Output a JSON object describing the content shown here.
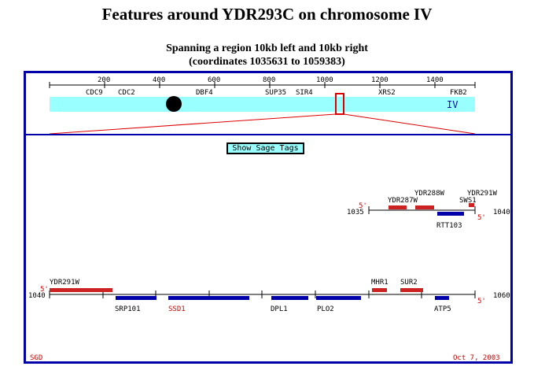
{
  "title": "Features around YDR293C on chromosome IV",
  "subtitle_line1": "Spanning a region 10kb left and 10kb right",
  "subtitle_line2": "(coordinates 1035631 to 1059383)",
  "sage_button_label": "Show Sage Tags",
  "footer": {
    "left": "SGD",
    "right": "Oct 7, 2003"
  },
  "colors": {
    "frame": "#0000aa",
    "chromosome": "#99ffff",
    "watson": "#cc2222",
    "crick": "#0000aa",
    "text_red": "#cc0000"
  },
  "overview": {
    "ticks": [
      "200",
      "400",
      "600",
      "800",
      "1000",
      "1200",
      "1400"
    ],
    "genes": [
      "CDC9",
      "CDC2",
      "DBF4",
      "SUP35",
      "SIR4",
      "XRS2",
      "FKB2"
    ],
    "chromosome_label": "IV"
  },
  "track1": {
    "start_label": "1035",
    "end_label": "1040",
    "five_prime": "5'",
    "genes": [
      "YDR287W",
      "YDR288W",
      "YDR291W",
      "SWS1",
      "RTT103"
    ]
  },
  "track2": {
    "start_label": "1040",
    "end_label": "1060",
    "five_prime": "5'",
    "genes_top": [
      "YDR291W",
      "MHR1",
      "SUR2"
    ],
    "genes_bottom": [
      "SRP101",
      "SSD1",
      "DPL1",
      "PLO2",
      "ATP5"
    ]
  }
}
